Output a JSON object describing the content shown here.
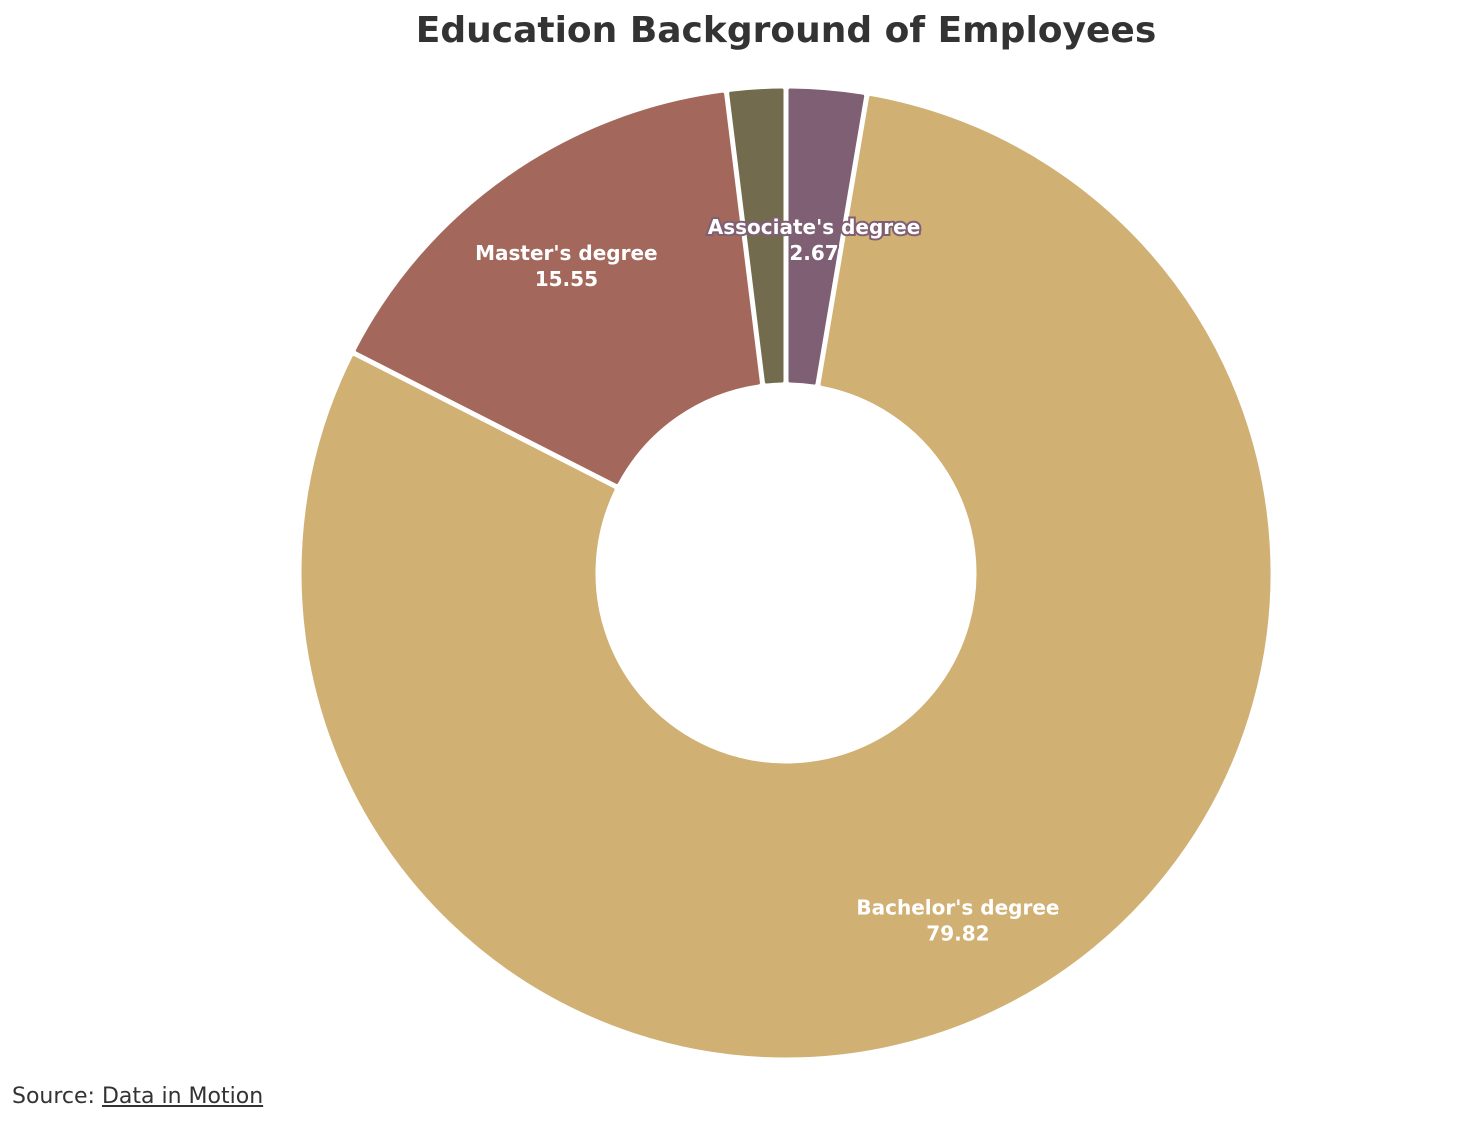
{
  "title": "Education Background of Employees",
  "source": {
    "prefix": "Source:",
    "link_text": "Data in Motion"
  },
  "chart_data": {
    "type": "pie",
    "style": "donut",
    "title": "Education Background of Employees",
    "start_angle_deg": 0,
    "direction": "clockwise",
    "slices": [
      {
        "label": "Associate's degree",
        "value": 2.67,
        "color": "#7f5f73",
        "show_label": true
      },
      {
        "label": "Bachelor's degree",
        "value": 79.82,
        "color": "#d1b074",
        "show_label": true
      },
      {
        "label": "Master's degree",
        "value": 15.55,
        "color": "#a3685b",
        "show_label": true
      },
      {
        "label": "",
        "value": 1.96,
        "color": "#726b4d",
        "show_label": false
      }
    ],
    "legend": "none"
  }
}
